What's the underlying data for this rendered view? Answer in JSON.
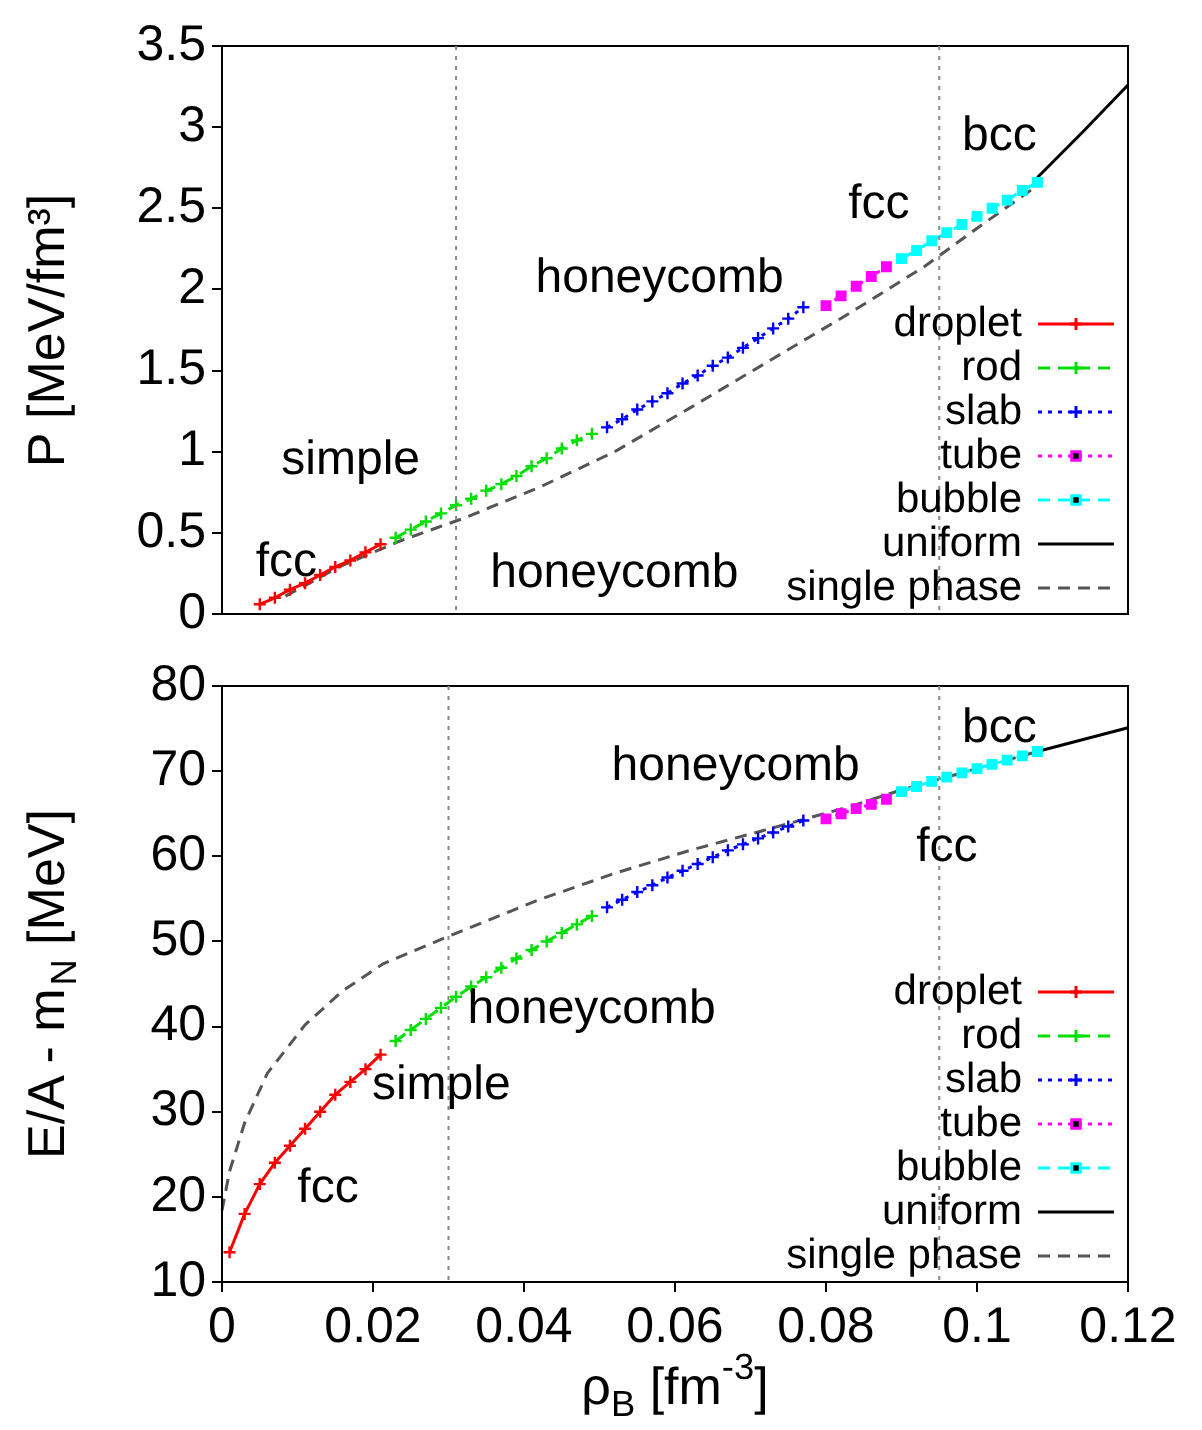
{
  "chart_data": [
    {
      "type": "line",
      "ylabel": "P [MeV/fm³]",
      "xlim": [
        0,
        0.12
      ],
      "ylim": [
        0,
        3.5
      ],
      "yticks": [
        0,
        0.5,
        1,
        1.5,
        2,
        2.5,
        3,
        3.5
      ],
      "tick_labels": "y",
      "grid": false,
      "legend": "bottom right",
      "series": [
        {
          "name": "droplet",
          "color": "#ff0000",
          "marker": "cross",
          "line_style": "solid",
          "x": [
            0.005,
            0.007,
            0.009,
            0.011,
            0.013,
            0.015,
            0.017,
            0.019,
            0.021
          ],
          "values": [
            0.06,
            0.1,
            0.15,
            0.19,
            0.24,
            0.29,
            0.33,
            0.38,
            0.43
          ]
        },
        {
          "name": "rod",
          "color": "#00e000",
          "marker": "cross",
          "line_style": "dashed",
          "x": [
            0.023,
            0.025,
            0.027,
            0.029,
            0.031,
            0.033,
            0.035,
            0.037,
            0.039,
            0.041,
            0.043,
            0.045,
            0.047,
            0.049
          ],
          "values": [
            0.47,
            0.52,
            0.57,
            0.62,
            0.67,
            0.71,
            0.76,
            0.8,
            0.85,
            0.91,
            0.96,
            1.02,
            1.07,
            1.11
          ]
        },
        {
          "name": "slab",
          "color": "#0000ff",
          "marker": "cross",
          "line_style": "dotted",
          "x": [
            0.051,
            0.053,
            0.055,
            0.057,
            0.059,
            0.061,
            0.063,
            0.065,
            0.067,
            0.069,
            0.071,
            0.073,
            0.075,
            0.077
          ],
          "values": [
            1.15,
            1.2,
            1.26,
            1.31,
            1.36,
            1.42,
            1.47,
            1.53,
            1.58,
            1.64,
            1.7,
            1.76,
            1.82,
            1.89
          ]
        },
        {
          "name": "tube",
          "color": "#ff00ff",
          "marker": "square",
          "line_style": "dotted",
          "x": [
            0.08,
            0.082,
            0.084,
            0.086,
            0.088
          ],
          "values": [
            1.9,
            1.96,
            2.02,
            2.08,
            2.14
          ]
        },
        {
          "name": "bubble",
          "color": "#00ffff",
          "marker": "square",
          "line_style": "dashed",
          "x": [
            0.09,
            0.092,
            0.094,
            0.096,
            0.098,
            0.1,
            0.102,
            0.104,
            0.106,
            0.108
          ],
          "values": [
            2.19,
            2.24,
            2.3,
            2.35,
            2.4,
            2.45,
            2.5,
            2.55,
            2.61,
            2.66
          ]
        },
        {
          "name": "uniform",
          "color": "#000000",
          "marker": "none",
          "line_style": "solid",
          "x": [
            0.108,
            0.114,
            0.12
          ],
          "values": [
            2.69,
            2.97,
            3.26
          ]
        },
        {
          "name": "single phase",
          "color": "#555555",
          "marker": "none",
          "line_style": "dashed",
          "x": [
            0.0084,
            0.0155,
            0.0236,
            0.032,
            0.042,
            0.052,
            0.062,
            0.0725,
            0.083,
            0.093,
            0.101,
            0.1077
          ],
          "values": [
            0.11,
            0.29,
            0.45,
            0.59,
            0.78,
            1.0,
            1.27,
            1.56,
            1.85,
            2.14,
            2.41,
            2.63
          ]
        }
      ],
      "ref_lines": [
        {
          "axis": "x",
          "value": 0.031,
          "line_style": "dotted",
          "color": "#888888"
        },
        {
          "axis": "x",
          "value": 0.095,
          "line_style": "dotted",
          "color": "#888888"
        }
      ],
      "annotations": [
        "fcc",
        "simple",
        "honeycomb",
        "honeycomb",
        "fcc",
        "bcc"
      ]
    },
    {
      "type": "line",
      "xlabel": "ρ$_{B}$ [fm$^{-3}$]",
      "ylabel": "E/A - m$_{N}$ [MeV]",
      "xlim": [
        0,
        0.12
      ],
      "xticks": [
        0,
        0.02,
        0.04,
        0.06,
        0.08,
        0.1,
        0.12
      ],
      "ylim": [
        10,
        80
      ],
      "yticks": [
        10,
        20,
        30,
        40,
        50,
        60,
        70,
        80
      ],
      "grid": false,
      "legend": "bottom right",
      "series": [
        {
          "name": "droplet",
          "color": "#ff0000",
          "marker": "cross",
          "line_style": "solid",
          "x": [
            0.001,
            0.003,
            0.005,
            0.007,
            0.009,
            0.011,
            0.013,
            0.015,
            0.017,
            0.019,
            0.021
          ],
          "values": [
            13.5,
            18,
            21.5,
            24,
            26,
            28,
            30,
            32,
            33.5,
            35,
            36.7
          ]
        },
        {
          "name": "rod",
          "color": "#00e000",
          "marker": "cross",
          "line_style": "dashed",
          "x": [
            0.023,
            0.025,
            0.027,
            0.029,
            0.031,
            0.033,
            0.035,
            0.037,
            0.039,
            0.041,
            0.043,
            0.045,
            0.047,
            0.049
          ],
          "values": [
            38.3,
            39.6,
            40.9,
            42.2,
            43.5,
            44.7,
            45.8,
            46.9,
            48,
            49,
            50,
            51,
            52,
            53
          ]
        },
        {
          "name": "slab",
          "color": "#0000ff",
          "marker": "cross",
          "line_style": "dotted",
          "x": [
            0.051,
            0.053,
            0.055,
            0.057,
            0.059,
            0.061,
            0.063,
            0.065,
            0.067,
            0.069,
            0.071,
            0.073,
            0.075,
            0.077
          ],
          "values": [
            54,
            54.9,
            55.8,
            56.6,
            57.5,
            58.3,
            59.1,
            59.9,
            60.7,
            61.4,
            62.1,
            62.8,
            63.5,
            64.2
          ]
        },
        {
          "name": "tube",
          "color": "#ff00ff",
          "marker": "square",
          "line_style": "dotted",
          "x": [
            0.08,
            0.082,
            0.084,
            0.086,
            0.088
          ],
          "values": [
            64.4,
            65,
            65.6,
            66.1,
            66.7
          ]
        },
        {
          "name": "bubble",
          "color": "#00ffff",
          "marker": "square",
          "line_style": "dashed",
          "x": [
            0.09,
            0.092,
            0.094,
            0.096,
            0.098,
            0.1,
            0.102,
            0.104,
            0.106,
            0.108
          ],
          "values": [
            67.6,
            68.2,
            68.8,
            69.3,
            69.8,
            70.3,
            70.8,
            71.3,
            71.8,
            72.3
          ]
        },
        {
          "name": "uniform",
          "color": "#000000",
          "marker": "none",
          "line_style": "solid",
          "x": [
            0.108,
            0.12
          ],
          "values": [
            72.3,
            75.1
          ]
        },
        {
          "name": "single phase",
          "color": "#555555",
          "marker": "none",
          "line_style": "dashed",
          "x": [
            0,
            0.001,
            0.003,
            0.006,
            0.011,
            0.016,
            0.0214,
            0.03,
            0.042,
            0.052,
            0.062,
            0.072,
            0.083,
            0.09,
            0.1,
            0.108
          ],
          "values": [
            18.4,
            23,
            28.7,
            34.5,
            40.2,
            44.2,
            47.4,
            50.6,
            54.9,
            58,
            60.7,
            63.1,
            65.8,
            67.8,
            70.3,
            72.3
          ]
        }
      ],
      "ref_lines": [
        {
          "axis": "x",
          "value": 0.03,
          "line_style": "dotted",
          "color": "#888888"
        },
        {
          "axis": "x",
          "value": 0.095,
          "line_style": "dotted",
          "color": "#888888"
        }
      ],
      "annotations": [
        "fcc",
        "simple",
        "honeycomb",
        "honeycomb",
        "fcc",
        "bcc"
      ]
    }
  ]
}
